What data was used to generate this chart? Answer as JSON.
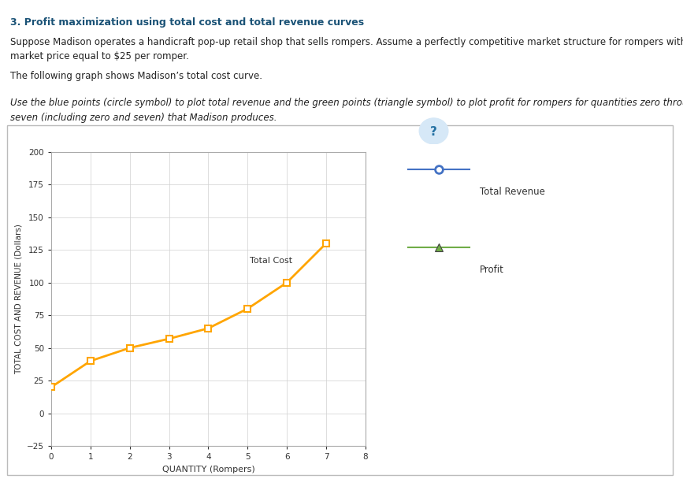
{
  "quantities": [
    0,
    1,
    2,
    3,
    4,
    5,
    6,
    7
  ],
  "total_cost": [
    20,
    40,
    50,
    57,
    65,
    80,
    100,
    130
  ],
  "price": 25,
  "total_cost_color": "#FFA500",
  "total_revenue_color": "#4472C4",
  "profit_color": "#70AD47",
  "total_cost_marker": "s",
  "total_revenue_marker": "o",
  "profit_marker": "^",
  "xlabel": "QUANTITY (Rompers)",
  "ylabel": "TOTAL COST AND REVENUE (Dollars)",
  "ylim": [
    -25,
    200
  ],
  "xlim": [
    0,
    8
  ],
  "yticks": [
    -25,
    0,
    25,
    50,
    75,
    100,
    125,
    150,
    175,
    200
  ],
  "xticks": [
    0,
    1,
    2,
    3,
    4,
    5,
    6,
    7,
    8
  ],
  "legend_labels": [
    "Total Revenue",
    "Profit"
  ],
  "total_cost_label": "Total Cost",
  "grid": true,
  "title_text": "3. Profit maximization using total cost and total revenue curves",
  "intro_text1": "Suppose Madison operates a handicraft pop-up retail shop that sells rompers. Assume a perfectly competitive market structure for rompers with a",
  "intro_text2": "market price equal to $25 per romper.",
  "intro_text3": "The following graph shows Madison’s total cost curve.",
  "instruction_text1": "Use the blue points (circle symbol) to plot total revenue and the green points (triangle symbol) to plot profit for rompers for quantities zero through",
  "instruction_text2": "seven (including zero and seven) that Madison produces.",
  "bg_color": "#FFFFFF",
  "plot_bg_color": "#FFFFFF",
  "grid_color": "#D0D0D0",
  "annotation_total_cost": "Total Cost",
  "box_border_color": "#BBBBBB"
}
